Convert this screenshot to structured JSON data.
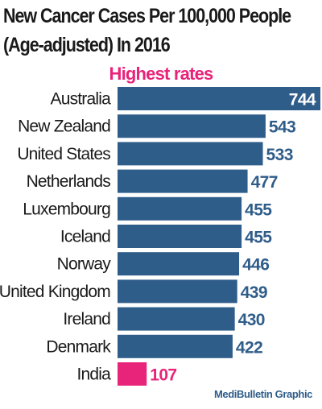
{
  "chart_data": {
    "type": "bar",
    "orientation": "horizontal",
    "title_line1": "New Cancer Cases Per 100,000 People",
    "title_line2": "(Age-adjusted) In 2016",
    "subtitle": "Highest rates",
    "categories": [
      "Australia",
      "New Zealand",
      "United States",
      "Netherlands",
      "Luxembourg",
      "Iceland",
      "Norway",
      "United Kingdom",
      "Ireland",
      "Denmark",
      "India"
    ],
    "values": [
      744,
      543,
      533,
      477,
      455,
      455,
      446,
      439,
      430,
      422,
      107
    ],
    "xlim": [
      0,
      744
    ],
    "grid": false,
    "colors": {
      "bar": "#2f5d8a",
      "highlight": "#e8237a",
      "label_inside": "#ffffff",
      "title": "#1a1a1a"
    },
    "highlight_category": "India",
    "credit": "MediBulletin Graphic"
  }
}
